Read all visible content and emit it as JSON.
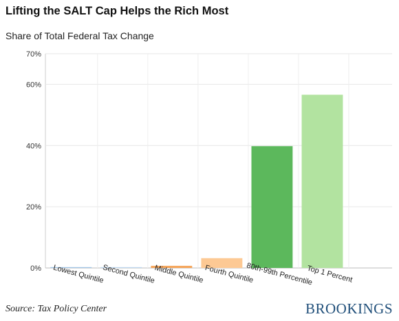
{
  "header": {
    "title": "Lifting the SALT Cap Helps the Rich Most",
    "subtitle": "Share of Total Federal Tax Change"
  },
  "footer": {
    "source": "Source: Tax Policy Center",
    "brand": "BROOKINGS"
  },
  "chart_data": {
    "type": "bar",
    "categories": [
      "Lowest Quintile",
      "Second Quintile",
      "Middle Quintile",
      "Fourth Quintile",
      "80th-99th Percentile",
      "Top 1 Percent"
    ],
    "values": [
      0.2,
      0.1,
      0.7,
      3.2,
      39.8,
      56.6
    ],
    "colors": [
      "#9ec3e6",
      "#bcd6ee",
      "#f5a55a",
      "#fdc994",
      "#5cb85c",
      "#b2e3a0"
    ],
    "yticks": [
      {
        "value": 0,
        "label": "0%"
      },
      {
        "value": 20,
        "label": "20%"
      },
      {
        "value": 40,
        "label": "40%"
      },
      {
        "value": 60,
        "label": "60%"
      },
      {
        "value": 70,
        "label": "70%"
      }
    ],
    "ylim": [
      0,
      70
    ],
    "grid": true
  }
}
